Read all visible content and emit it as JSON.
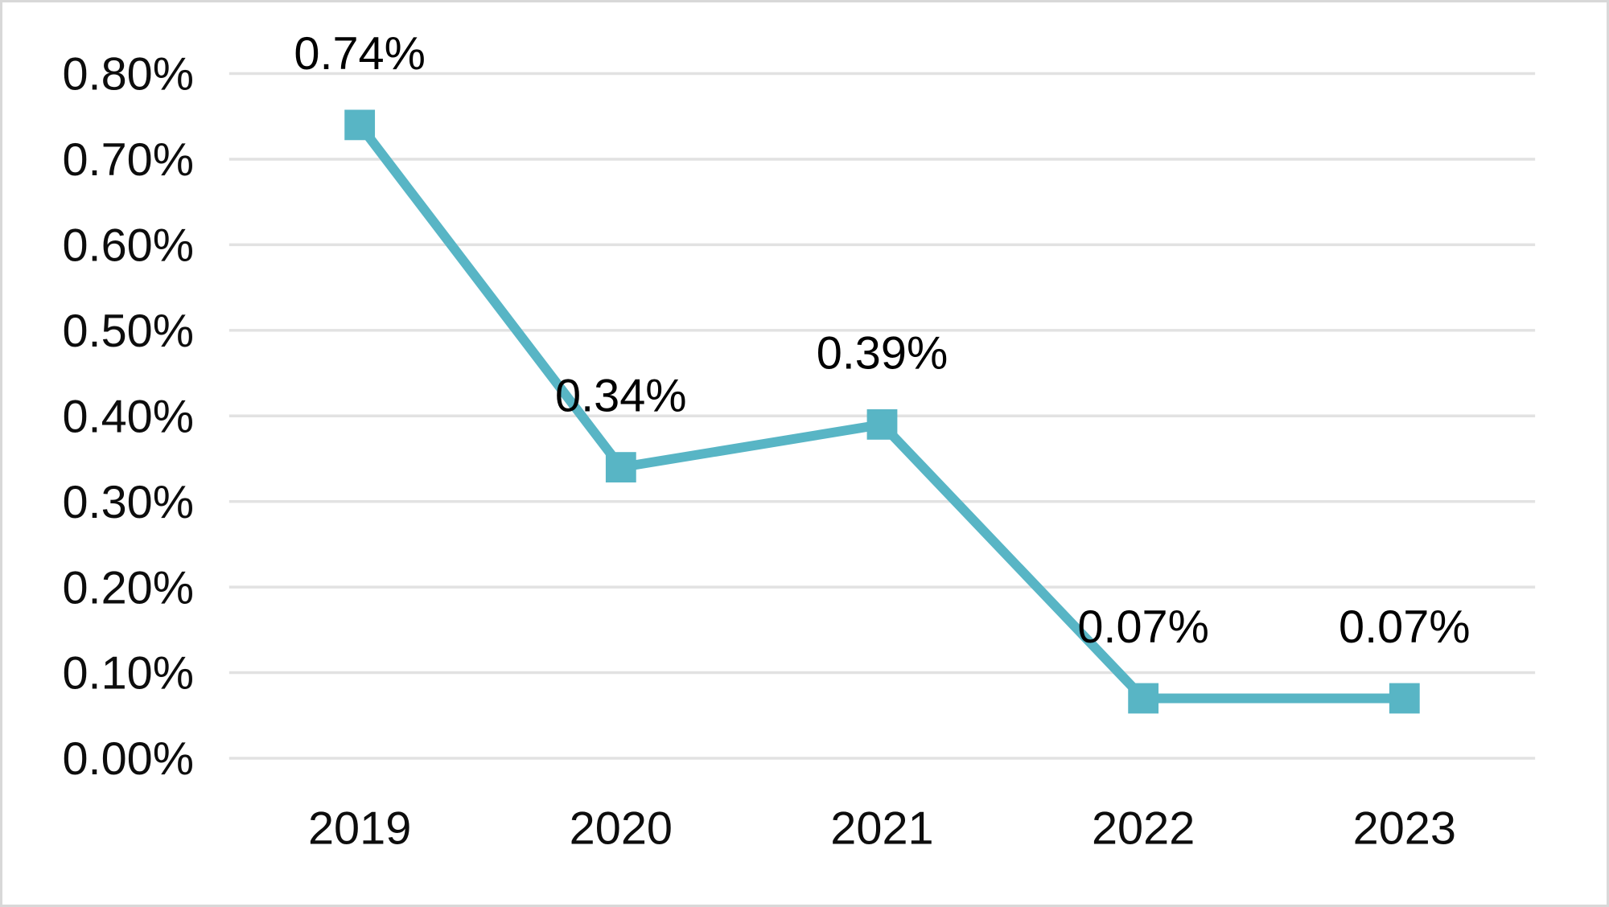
{
  "chart_data": {
    "type": "line",
    "title": "",
    "xlabel": "",
    "ylabel": "",
    "categories": [
      "2019",
      "2020",
      "2021",
      "2022",
      "2023"
    ],
    "series": [
      {
        "values": [
          0.74,
          0.34,
          0.39,
          0.07,
          0.07
        ],
        "data_labels": [
          "0.74%",
          "0.34%",
          "0.39%",
          "0.07%",
          "0.07%"
        ],
        "marker": "square",
        "color": "#58B5C5"
      }
    ],
    "y_axis": {
      "min": 0.0,
      "max": 0.8,
      "tick_values": [
        0.0,
        0.1,
        0.2,
        0.3,
        0.4,
        0.5,
        0.6,
        0.7,
        0.8
      ],
      "tick_labels": [
        "0.00%",
        "0.10%",
        "0.20%",
        "0.30%",
        "0.40%",
        "0.50%",
        "0.60%",
        "0.70%",
        "0.80%"
      ]
    },
    "x_axis": {
      "tick_labels": [
        "2019",
        "2020",
        "2021",
        "2022",
        "2023"
      ]
    },
    "grid": true,
    "legend": false,
    "colors": {
      "line": "#58B5C5",
      "marker": "#58B5C5",
      "gridline": "#e2e2e2",
      "text": "#0d0d0d",
      "data_label_text": "#000000",
      "background": "#ffffff",
      "frame_border": "#d8d8d8"
    }
  }
}
